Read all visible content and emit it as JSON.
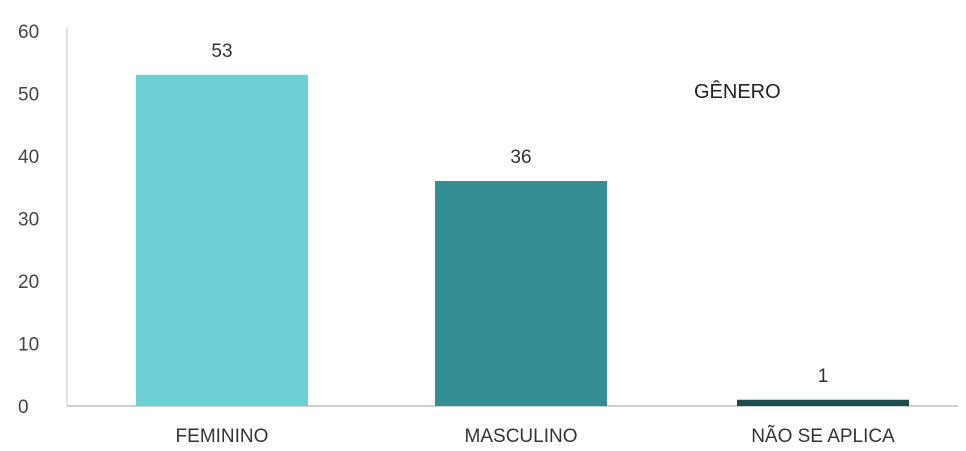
{
  "chart_data": {
    "type": "bar",
    "title": "GÊNERO",
    "categories": [
      "FEMININO",
      "MASCULINO",
      "NÃO SE APLICA"
    ],
    "values": [
      53,
      36,
      1
    ],
    "value_labels": [
      "53",
      "36",
      "1"
    ],
    "ylim": [
      0,
      60
    ],
    "yticks": [
      0,
      10,
      20,
      30,
      40,
      50,
      60
    ],
    "ytick_labels": [
      "0",
      "10",
      "20",
      "30",
      "40",
      "50",
      "60"
    ],
    "colors": [
      "#6ecfd6",
      "#338f93",
      "#1d4e4f"
    ],
    "grid": false,
    "legend": "none"
  }
}
